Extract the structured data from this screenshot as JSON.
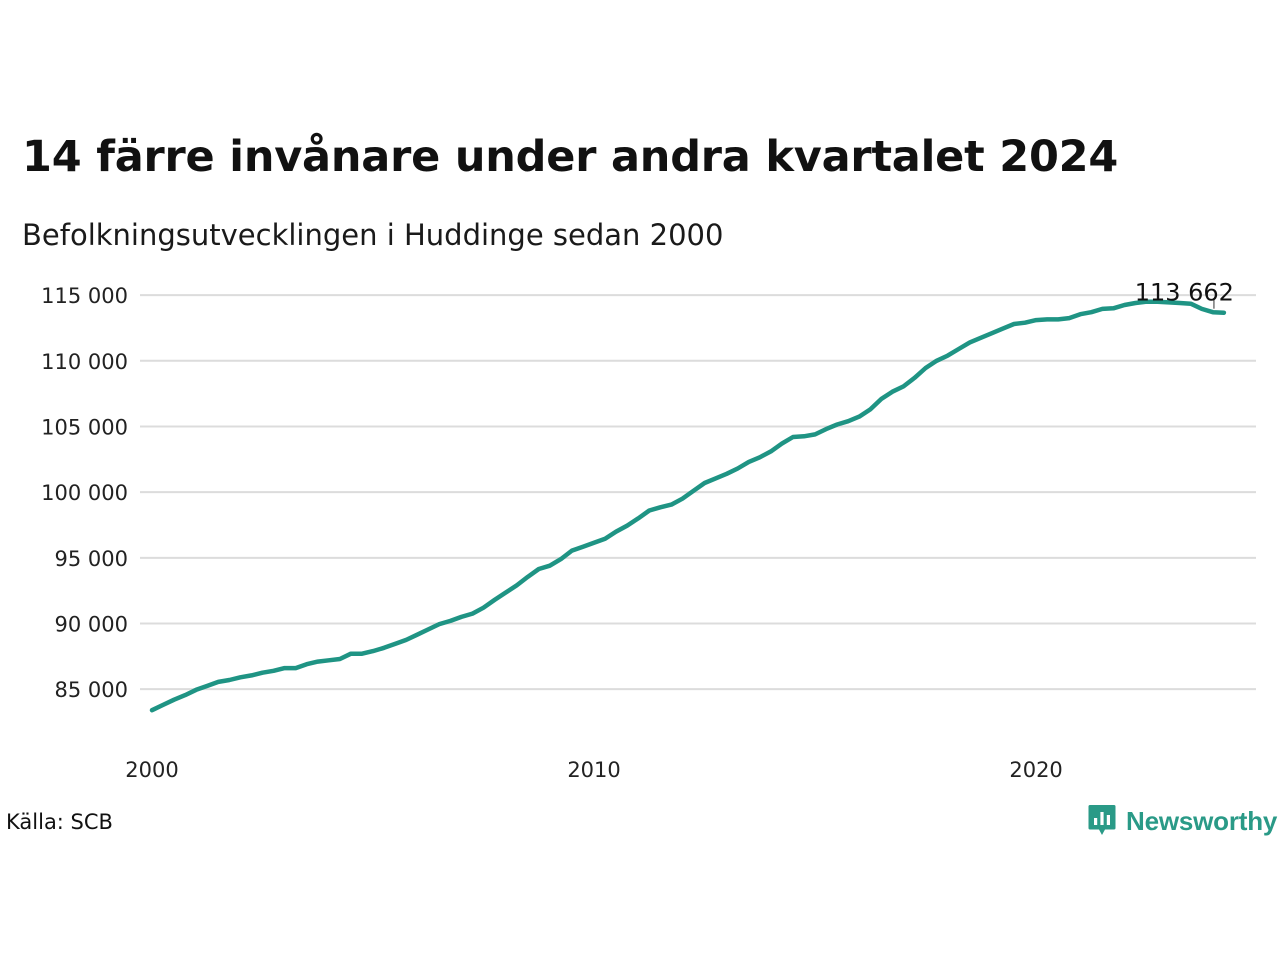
{
  "title": "14 färre invånare under andra kvartalet 2024",
  "subtitle": "Befolkningsutvecklingen i Huddinge sedan 2000",
  "source": "Källa: SCB",
  "brand": "Newsworthy",
  "colors": {
    "line": "#1f9484",
    "grid": "#dcdcdc",
    "brand": "#2a9a87"
  },
  "icons": {
    "brand_logo": "bar-chart-speech-bubble-icon"
  },
  "chart_data": {
    "type": "line",
    "title": "14 färre invånare under andra kvartalet 2024",
    "subtitle": "Befolkningsutvecklingen i Huddinge sedan 2000",
    "xlabel": "",
    "ylabel": "",
    "xlim": [
      2000,
      2024.5
    ],
    "ylim": [
      82500,
      116000
    ],
    "x_ticks": [
      2000,
      2010,
      2020
    ],
    "x_tick_labels": [
      "2000",
      "2010",
      "2020"
    ],
    "y_ticks": [
      85000,
      90000,
      95000,
      100000,
      105000,
      110000,
      115000
    ],
    "y_tick_labels": [
      "85 000",
      "90 000",
      "95 000",
      "100 000",
      "105 000",
      "110 000",
      "115 000"
    ],
    "grid": "horizontal",
    "end_label": "113 662",
    "x": [
      2000.0,
      2000.25,
      2000.5,
      2000.75,
      2001.0,
      2001.25,
      2001.5,
      2001.75,
      2002.0,
      2002.25,
      2002.5,
      2002.75,
      2003.0,
      2003.25,
      2003.5,
      2003.75,
      2004.0,
      2004.25,
      2004.5,
      2004.75,
      2005.0,
      2005.25,
      2005.5,
      2005.75,
      2006.0,
      2006.25,
      2006.5,
      2006.75,
      2007.0,
      2007.25,
      2007.5,
      2007.75,
      2008.0,
      2008.25,
      2008.5,
      2008.75,
      2009.0,
      2009.25,
      2009.5,
      2009.75,
      2010.0,
      2010.25,
      2010.5,
      2010.75,
      2011.0,
      2011.25,
      2011.5,
      2011.75,
      2012.0,
      2012.25,
      2012.5,
      2012.75,
      2013.0,
      2013.25,
      2013.5,
      2013.75,
      2014.0,
      2014.25,
      2014.5,
      2014.75,
      2015.0,
      2015.25,
      2015.5,
      2015.75,
      2016.0,
      2016.25,
      2016.5,
      2016.75,
      2017.0,
      2017.25,
      2017.5,
      2017.75,
      2018.0,
      2018.25,
      2018.5,
      2018.75,
      2019.0,
      2019.25,
      2019.5,
      2019.75,
      2020.0,
      2020.25,
      2020.5,
      2020.75,
      2021.0,
      2021.25,
      2021.5,
      2021.75,
      2022.0,
      2022.25,
      2022.5,
      2022.75,
      2023.0,
      2023.25,
      2023.5,
      2023.75,
      2024.0,
      2024.25
    ],
    "series": [
      {
        "values": [
          83400,
          83800,
          84200,
          84550,
          84950,
          85250,
          85550,
          85700,
          85900,
          86050,
          86250,
          86400,
          86600,
          86600,
          86900,
          87100,
          87200,
          87300,
          87700,
          87700,
          87900,
          88150,
          88450,
          88750,
          89150,
          89550,
          89950,
          90200,
          90500,
          90750,
          91200,
          91800,
          92350,
          92900,
          93550,
          94150,
          94400,
          94900,
          95550,
          95850,
          96150,
          96450,
          97000,
          97450,
          98000,
          98600,
          98850,
          99050,
          99500,
          100100,
          100700,
          101050,
          101400,
          101800,
          102300,
          102650,
          103100,
          103700,
          104200,
          104250,
          104400,
          104800,
          105150,
          105400,
          105750,
          106300,
          107100,
          107650,
          108050,
          108700,
          109450,
          110000,
          110400,
          110900,
          111400,
          111750,
          112100,
          112450,
          112800,
          112900,
          113100,
          113150,
          113150,
          113250,
          113550,
          113700,
          113950,
          114000,
          114250,
          114400,
          114500,
          114500,
          114450,
          114400,
          114350,
          113950,
          113700,
          113662
        ]
      }
    ]
  }
}
